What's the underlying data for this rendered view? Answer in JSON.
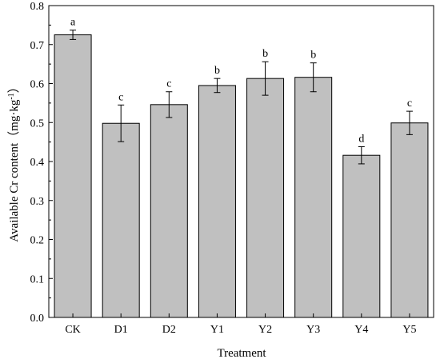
{
  "chart_data": {
    "type": "bar",
    "xlabel": "Treatment",
    "ylabel_main": "Available Cr content（mg·kg",
    "ylabel_sup": "-1",
    "ylabel_tail": "）",
    "ylim": [
      0.0,
      0.8
    ],
    "yticks": [
      "0.0",
      "0.1",
      "0.2",
      "0.3",
      "0.4",
      "0.5",
      "0.6",
      "0.7",
      "0.8"
    ],
    "categories": [
      "CK",
      "D1",
      "D2",
      "Y1",
      "Y2",
      "Y3",
      "Y4",
      "Y5"
    ],
    "values": [
      0.725,
      0.498,
      0.546,
      0.595,
      0.613,
      0.616,
      0.416,
      0.499
    ],
    "errors": [
      0.012,
      0.047,
      0.033,
      0.018,
      0.043,
      0.037,
      0.022,
      0.03
    ],
    "significance": [
      "a",
      "c",
      "c",
      "b",
      "b",
      "b",
      "d",
      "c"
    ],
    "bar_color": "#c0c0c0",
    "grid": false,
    "legend": "none"
  }
}
